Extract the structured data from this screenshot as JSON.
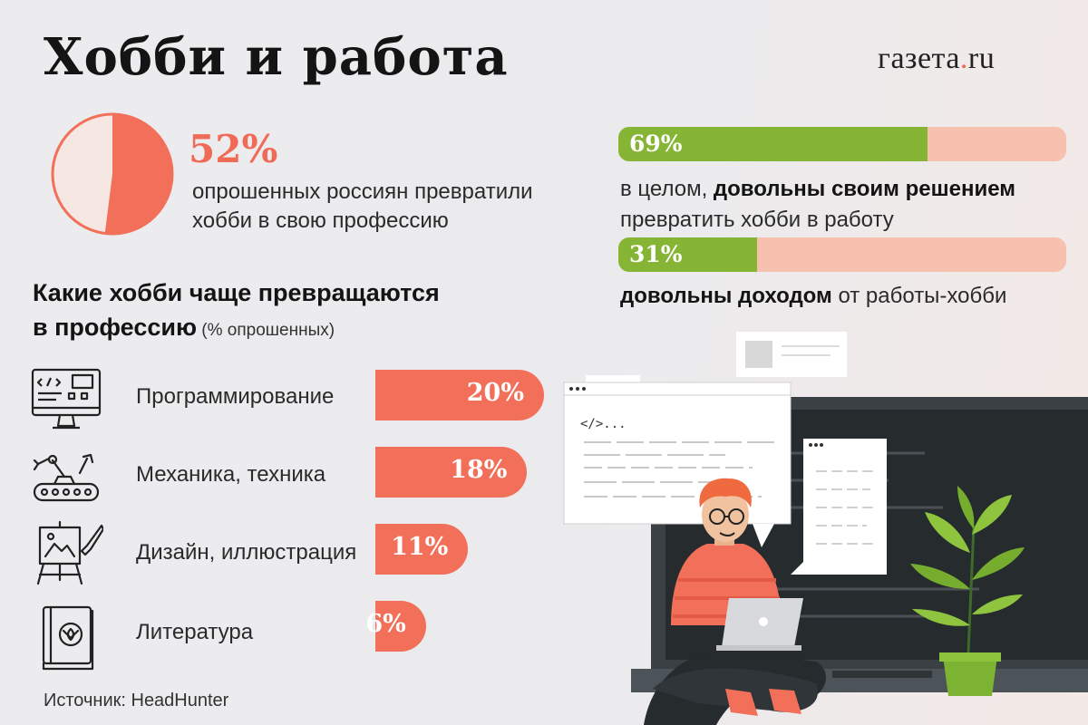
{
  "title": "Хобби и работа",
  "logo": {
    "name": "газета",
    "dot": ".",
    "tld": "ru"
  },
  "colors": {
    "coral": "#f26f5a",
    "green": "#86b434",
    "peach": "#f6c1ae",
    "dark": "#141414"
  },
  "pie": {
    "value_label": "52%",
    "caption": "опрошенных россиян превратили хобби в свою профессию"
  },
  "satisfaction": [
    {
      "value_label": "69%",
      "text_plain_1": "в целом, ",
      "text_bold": "довольны своим решением",
      "text_plain_2": "превратить хобби в работу"
    },
    {
      "value_label": "31%",
      "text_bold": "довольны доходом",
      "text_plain": " от работы-хобби"
    }
  ],
  "section": {
    "heading_1": "Какие хобби чаще превращаются",
    "heading_2": "в профессию",
    "note": " (% опрошенных)"
  },
  "categories": [
    {
      "label": "Программирование",
      "value_label": "20%",
      "icon": "computer-code-icon"
    },
    {
      "label": "Механика, техника",
      "value_label": "18%",
      "icon": "robot-arm-icon"
    },
    {
      "label": "Дизайн, иллюстрация",
      "value_label": "11%",
      "icon": "easel-brush-icon"
    },
    {
      "label": "Литература",
      "value_label": "6%",
      "icon": "book-icon"
    }
  ],
  "source": "Источник: HeadHunter",
  "illustration": {
    "code_tag": "</>..."
  },
  "chart_data": [
    {
      "type": "pie",
      "title": "",
      "values": [
        52,
        48
      ],
      "labels": [
        "52%",
        ""
      ]
    },
    {
      "type": "bar",
      "orientation": "horizontal",
      "categories": [
        "Программирование",
        "Механика, техника",
        "Дизайн, иллюстрация",
        "Литература"
      ],
      "values": [
        20,
        18,
        11,
        6
      ],
      "xlim": [
        0,
        20
      ]
    },
    {
      "type": "bar",
      "orientation": "horizontal",
      "stacked": true,
      "series": [
        {
          "values": [
            69,
            31
          ]
        }
      ],
      "xlim": [
        0,
        100
      ]
    }
  ]
}
